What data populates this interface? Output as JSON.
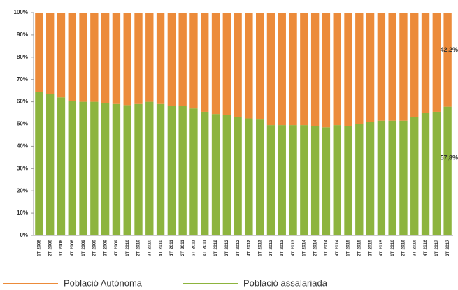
{
  "chart_data": {
    "type": "stacked_bar",
    "categories": [
      "1T 2008",
      "2T 2008",
      "3T 2008",
      "4T 2008",
      "1T 2009",
      "2T 2009",
      "3T 2009",
      "4T 2009",
      "1T 2010",
      "2T 2010",
      "3T 2010",
      "4T 2010",
      "1T 2011",
      "2T 2011",
      "3T 2011",
      "4T 2011",
      "1T 2012",
      "2T 2012",
      "3T 2012",
      "4T 2012",
      "1T 2013",
      "2T 2013",
      "3T 2013",
      "4T 2013",
      "1T 2014",
      "2T 2014",
      "3T 2014",
      "4T 2014",
      "1T 2015",
      "2T 2015",
      "3T 2015",
      "4T 2015",
      "1T 2016",
      "2T 2016",
      "3T 2016",
      "4T 2016",
      "1T 2017",
      "2T 2017"
    ],
    "series": [
      {
        "name": "Població assalariada",
        "color": "#8db43e",
        "values": [
          64.3,
          63.5,
          62,
          60.5,
          60,
          60,
          59.5,
          59,
          58.5,
          59,
          60,
          59,
          58,
          58,
          57,
          55.5,
          54.5,
          54,
          53,
          52.5,
          52,
          49.5,
          49.5,
          49.5,
          49.5,
          49,
          48.5,
          49.5,
          49,
          50,
          51,
          51.5,
          51.5,
          51.5,
          53,
          55,
          55.5,
          57.8
        ],
        "value_labels": [
          null,
          null,
          null,
          null,
          null,
          null,
          null,
          null,
          null,
          null,
          null,
          null,
          null,
          null,
          null,
          null,
          null,
          null,
          null,
          null,
          null,
          null,
          null,
          null,
          null,
          null,
          null,
          null,
          null,
          null,
          null,
          null,
          null,
          null,
          null,
          null,
          null,
          "57,8%"
        ]
      },
      {
        "name": "Població Autònoma",
        "color": "#ec8b3a",
        "values": [
          35.7,
          36.5,
          38,
          39.5,
          40,
          40,
          40.5,
          41,
          41.5,
          41,
          40,
          41,
          42,
          42,
          43,
          44.5,
          45.5,
          46,
          47,
          47.5,
          48,
          50.5,
          50.5,
          50.5,
          50.5,
          51,
          51.5,
          50.5,
          51,
          50,
          49,
          48.5,
          48.5,
          48.5,
          47,
          45,
          44.5,
          42.2
        ],
        "value_labels": [
          null,
          null,
          null,
          null,
          null,
          null,
          null,
          null,
          null,
          null,
          null,
          null,
          null,
          null,
          null,
          null,
          null,
          null,
          null,
          null,
          null,
          null,
          null,
          null,
          null,
          null,
          null,
          null,
          null,
          null,
          null,
          null,
          null,
          null,
          null,
          null,
          null,
          "42,2%"
        ]
      }
    ],
    "ylim": [
      0,
      100
    ],
    "yticks": [
      {
        "value": 0,
        "label": "0%"
      },
      {
        "value": 10,
        "label": "10%"
      },
      {
        "value": 20,
        "label": "20%"
      },
      {
        "value": 30,
        "label": "30%"
      },
      {
        "value": 40,
        "label": "40%"
      },
      {
        "value": 50,
        "label": "50%"
      },
      {
        "value": 60,
        "label": "60%"
      },
      {
        "value": 70,
        "label": "70%"
      },
      {
        "value": 80,
        "label": "80%"
      },
      {
        "value": 90,
        "label": "90%"
      },
      {
        "value": 100,
        "label": "100%"
      }
    ],
    "legend": "bottom"
  }
}
